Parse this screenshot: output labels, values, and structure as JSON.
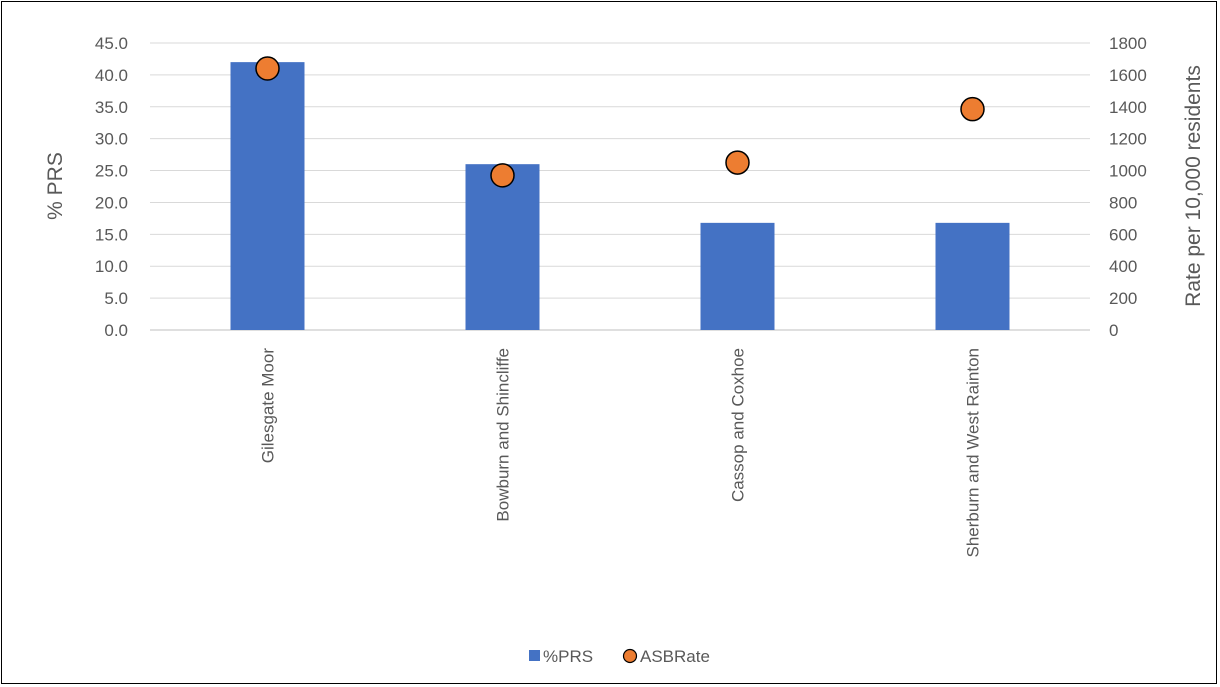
{
  "chart_data": {
    "type": "bar",
    "categories": [
      "Gilesgate Moor",
      "Bowburn and Shincliffe",
      "Cassop and Coxhoe",
      "Sherburn and West Rainton"
    ],
    "series": [
      {
        "name": "%PRS",
        "type": "bar",
        "axis": "left",
        "values": [
          42.0,
          26.0,
          16.8,
          16.8
        ],
        "color": "#4472C4"
      },
      {
        "name": "ASBRate",
        "type": "scatter",
        "axis": "right",
        "values": [
          1640,
          970,
          1050,
          1385
        ],
        "color": "#ED7D31"
      }
    ],
    "ylabel": "% PRS",
    "y2label": "Rate per 10,000 residents",
    "ylim": [
      0,
      45
    ],
    "y2lim": [
      0,
      1800
    ],
    "yticks": [
      "0.0",
      "5.0",
      "10.0",
      "15.0",
      "20.0",
      "25.0",
      "30.0",
      "35.0",
      "40.0",
      "45.0"
    ],
    "y2ticks": [
      "0",
      "200",
      "400",
      "600",
      "800",
      "1000",
      "1200",
      "1400",
      "1600",
      "1800"
    ],
    "grid": true,
    "legend_position": "bottom",
    "gridline_color": "#D9D9D9"
  }
}
